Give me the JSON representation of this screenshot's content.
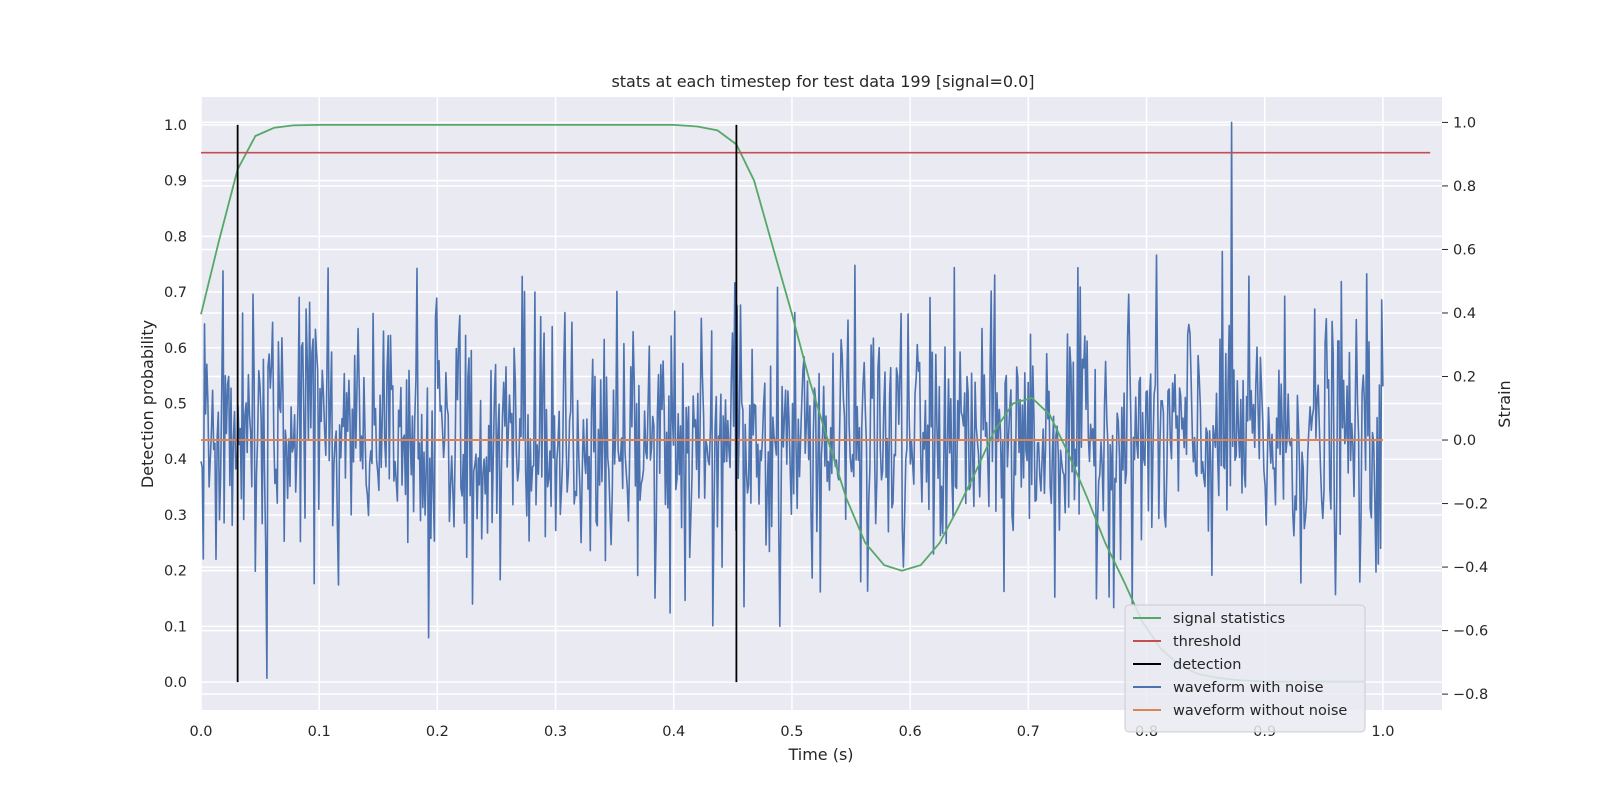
{
  "chart_data": {
    "type": "line",
    "title": "stats at each timestep for test data 199 [signal=0.0]",
    "xlabel": "Time (s)",
    "ylabel_left": "Detection probability",
    "ylabel_right": "Strain",
    "xlim": [
      0.0,
      1.05
    ],
    "ylim_left": [
      -0.05,
      1.05
    ],
    "ylim_right": [
      -0.85,
      1.08
    ],
    "x_ticks": [
      "0.0",
      "0.1",
      "0.2",
      "0.3",
      "0.4",
      "0.5",
      "0.6",
      "0.7",
      "0.8",
      "0.9",
      "1.0"
    ],
    "y_left_ticks": [
      "0.0",
      "0.1",
      "0.2",
      "0.3",
      "0.4",
      "0.5",
      "0.6",
      "0.7",
      "0.8",
      "0.9",
      "1.0"
    ],
    "y_right_ticks": [
      "−0.8",
      "−0.6",
      "−0.4",
      "−0.2",
      "0.0",
      "0.2",
      "0.4",
      "0.6",
      "0.8",
      "1.0"
    ],
    "grid": true,
    "legend_position": "lower-right",
    "legend": [
      {
        "label": "signal statistics",
        "color": "#55a868"
      },
      {
        "label": "threshold",
        "color": "#c44e52"
      },
      {
        "label": "detection",
        "color": "#000000"
      },
      {
        "label": "waveform with noise",
        "color": "#4c72b0"
      },
      {
        "label": "waveform without noise",
        "color": "#dd8452"
      }
    ],
    "series": {
      "signal_statistics": {
        "axis": "left",
        "x": [
          0.0,
          0.015,
          0.031,
          0.046,
          0.062,
          0.078,
          0.1,
          0.2,
          0.3,
          0.4,
          0.42,
          0.437,
          0.453,
          0.468,
          0.484,
          0.5,
          0.515,
          0.531,
          0.546,
          0.562,
          0.578,
          0.593,
          0.609,
          0.625,
          0.64,
          0.656,
          0.671,
          0.687,
          0.703,
          0.718,
          0.734,
          0.75,
          0.765,
          0.781,
          0.796,
          0.812,
          0.828,
          0.843,
          0.859,
          0.875,
          0.89,
          0.906,
          0.921,
          0.937,
          0.953,
          0.968,
          0.984
        ],
        "values": [
          0.66,
          0.79,
          0.92,
          0.98,
          0.995,
          0.999,
          1.0,
          1.0,
          1.0,
          1.0,
          0.997,
          0.99,
          0.965,
          0.9,
          0.78,
          0.66,
          0.54,
          0.43,
          0.33,
          0.25,
          0.21,
          0.2,
          0.21,
          0.25,
          0.31,
          0.38,
          0.45,
          0.5,
          0.51,
          0.48,
          0.41,
          0.33,
          0.25,
          0.18,
          0.11,
          0.06,
          0.03,
          0.015,
          0.008,
          0.004,
          0.002,
          0.001,
          0.001,
          0.001,
          0.001,
          0.001,
          0.001
        ]
      },
      "threshold": {
        "axis": "left",
        "value": 0.95,
        "x_range": [
          0.0,
          1.04
        ]
      },
      "detection": {
        "axis": "left",
        "x": [
          0.031,
          0.453
        ],
        "y_range": [
          0.0,
          1.0
        ]
      },
      "waveform_with_noise": {
        "axis": "right",
        "x_range": [
          0.0,
          1.0
        ],
        "n_points": 1024,
        "std": 0.2,
        "seed": 199,
        "max": {
          "x": 0.872,
          "value": 1.0
        },
        "min": {
          "x": 0.056,
          "value": -0.75
        }
      },
      "waveform_without_noise": {
        "axis": "right",
        "value": 0.0,
        "x_range": [
          0.0,
          1.0
        ]
      }
    }
  }
}
